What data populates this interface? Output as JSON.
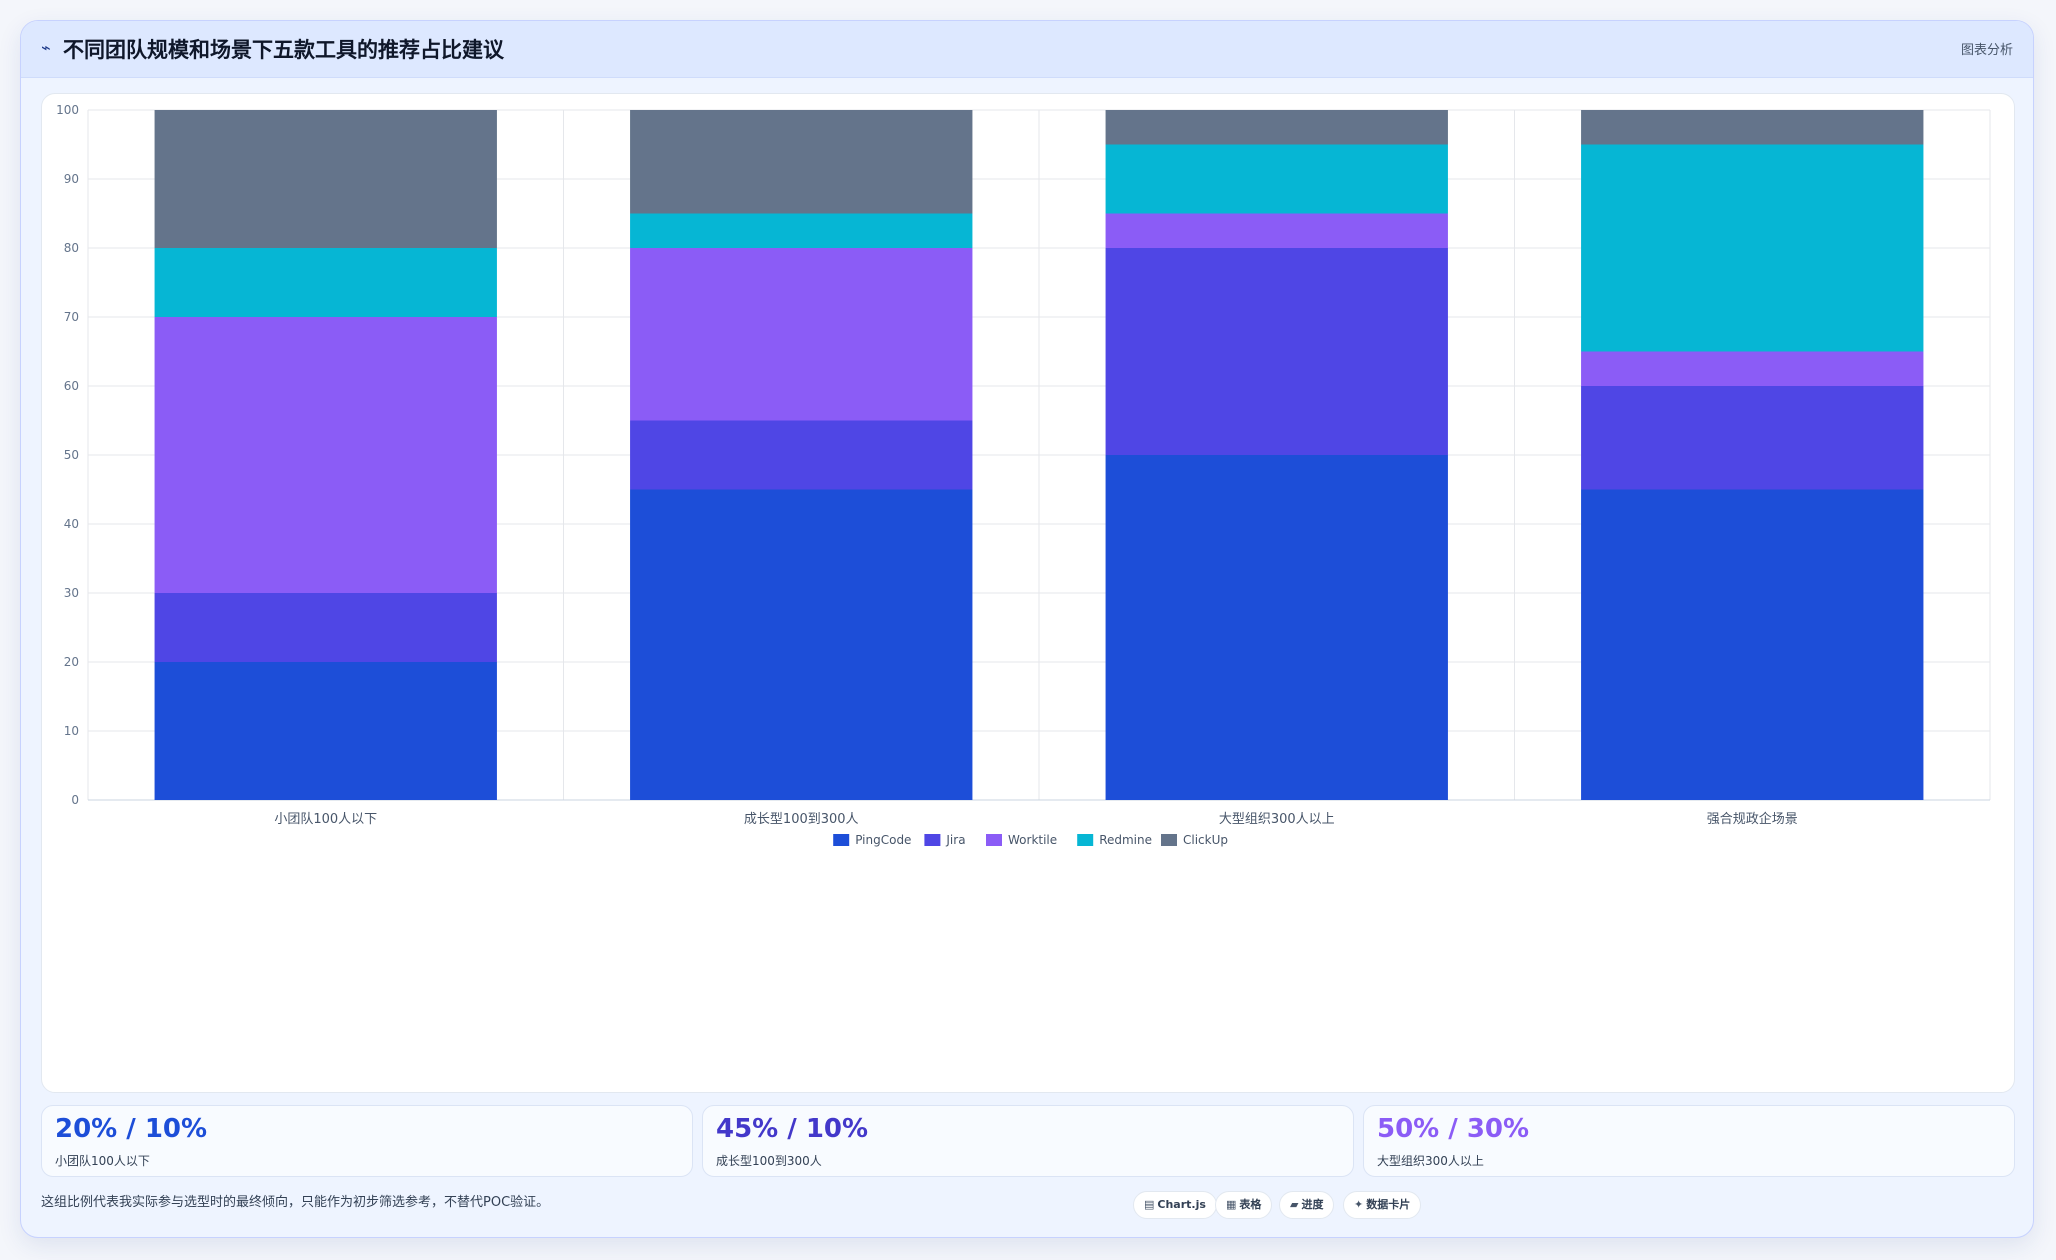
{
  "header": {
    "title": "不同团队规模和场景下五款工具的推荐占比建议",
    "tag": "图表分析"
  },
  "colors": {
    "PingCode": "#1d4ed8",
    "Jira": "#4f46e5",
    "Worktile": "#8b5cf6",
    "Redmine": "#06b6d4",
    "ClickUp": "#64748b"
  },
  "chart_data": {
    "type": "bar",
    "stacked": true,
    "categories": [
      "小团队100人以下",
      "成长型100到300人",
      "大型组织300人以上",
      "强合规政企场景"
    ],
    "series": [
      {
        "name": "PingCode",
        "values": [
          20,
          45,
          50,
          45
        ]
      },
      {
        "name": "Jira",
        "values": [
          10,
          10,
          30,
          15
        ]
      },
      {
        "name": "Worktile",
        "values": [
          40,
          25,
          5,
          5
        ]
      },
      {
        "name": "Redmine",
        "values": [
          10,
          5,
          10,
          30
        ]
      },
      {
        "name": "ClickUp",
        "values": [
          20,
          15,
          5,
          5
        ]
      }
    ],
    "ylim": [
      0,
      100
    ],
    "yticks": [
      0,
      10,
      20,
      30,
      40,
      50,
      60,
      70,
      80,
      90,
      100
    ],
    "title": "",
    "xlabel": "",
    "ylabel": "",
    "grid": true,
    "legend_position": "bottom"
  },
  "stats": [
    {
      "value": "20% / 10%",
      "label": "小团队100人以下",
      "color": "#1d4ed8"
    },
    {
      "value": "45% / 10%",
      "label": "成长型100到300人",
      "color": "#4338ca"
    },
    {
      "value": "50% / 30%",
      "label": "大型组织300人以上",
      "color": "#8b5cf6"
    }
  ],
  "footnote": "这组比例代表我实际参与选型时的最终倾向，只能作为初步筛选参考，不替代POC验证。",
  "chips": [
    {
      "icon": "chart-icon",
      "glyph": "▤",
      "label": "Chart.js"
    },
    {
      "icon": "table-icon",
      "glyph": "▦",
      "label": "表格"
    },
    {
      "icon": "progress-icon",
      "glyph": "▰",
      "label": "进度"
    },
    {
      "icon": "sparkle-icon",
      "glyph": "✦",
      "label": "数据卡片"
    }
  ]
}
